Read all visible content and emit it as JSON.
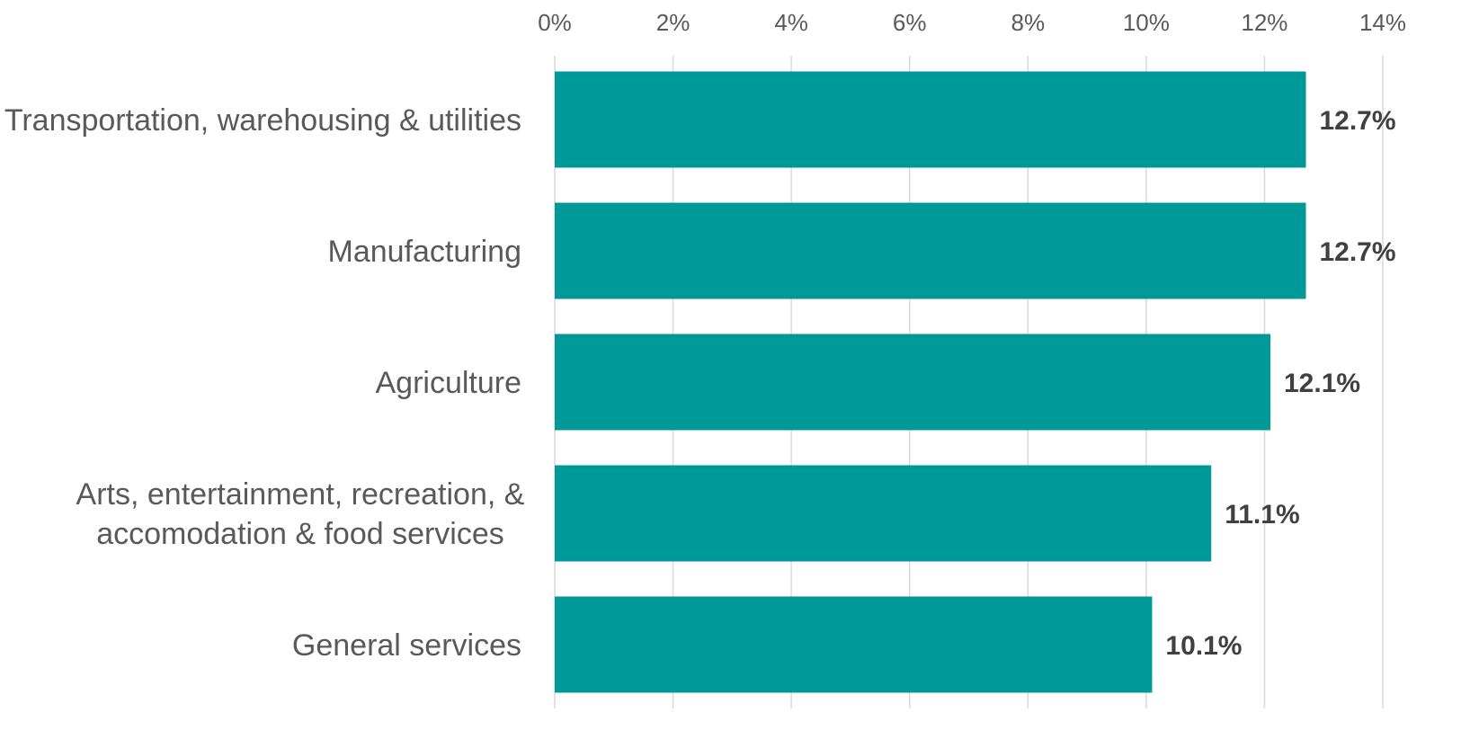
{
  "chart_data": {
    "type": "bar",
    "orientation": "horizontal",
    "categories": [
      [
        "Transportation, warehousing & utilities"
      ],
      [
        "Manufacturing"
      ],
      [
        "Agriculture"
      ],
      [
        "Arts, entertainment, recreation, &",
        "accomodation & food services"
      ],
      [
        "General services"
      ]
    ],
    "values": [
      12.7,
      12.7,
      12.1,
      11.1,
      10.1
    ],
    "value_labels": [
      "12.7%",
      "12.7%",
      "12.1%",
      "11.1%",
      "10.1%"
    ],
    "xlim": [
      0,
      14
    ],
    "x_ticks": [
      0,
      2,
      4,
      6,
      8,
      10,
      12,
      14
    ],
    "x_tick_labels": [
      "0%",
      "2%",
      "4%",
      "6%",
      "8%",
      "10%",
      "12%",
      "14%"
    ],
    "x_axis_position": "top",
    "grid": true,
    "legend": false,
    "title": "",
    "xlabel": "",
    "ylabel": "",
    "colors": {
      "bar": "#009999",
      "gridline": "#d9d9d9",
      "tick_text": "#595959",
      "category_text": "#595959",
      "value_text": "#404040"
    }
  }
}
